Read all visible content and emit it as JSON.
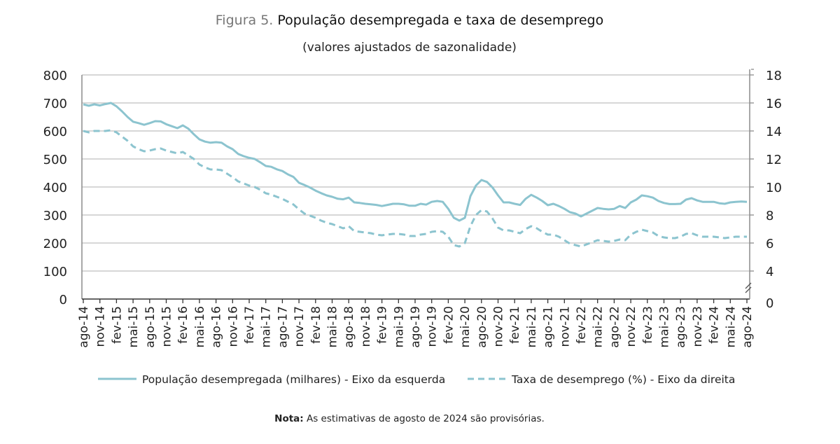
{
  "title": {
    "prefix": "Figura 5.",
    "text": "População desempregada e taxa de desemprego"
  },
  "subtitle": "(valores ajustados de sazonalidade)",
  "note": {
    "label": "Nota:",
    "text": "As estimativas de agosto de 2024 são provisórias."
  },
  "colors": {
    "series": "#8cc4cf",
    "grid": "#bfbfbf",
    "axis": "#8c8c8c"
  },
  "chart_data": {
    "type": "line",
    "frequency": "monthly",
    "x_tick_labels": [
      "ago-14",
      "nov-14",
      "fev-15",
      "mai-15",
      "ago-15",
      "nov-15",
      "fev-16",
      "mai-16",
      "ago-16",
      "nov-16",
      "fev-17",
      "mai-17",
      "ago-17",
      "nov-17",
      "fev-18",
      "mai-18",
      "ago-18",
      "nov-18",
      "fev-19",
      "mai-19",
      "ago-19",
      "nov-19",
      "fev-20",
      "mai-20",
      "ago-20",
      "nov-20",
      "fev-21",
      "mai-21",
      "ago-21",
      "nov-21",
      "fev-22",
      "mai-22",
      "ago-22",
      "nov-22",
      "fev-23",
      "mai-23",
      "ago-23",
      "nov-23",
      "fev-24",
      "mai-24",
      "ago-24"
    ],
    "y_left": {
      "range": [
        0,
        800
      ],
      "ticks": [
        "0",
        "100",
        "200",
        "300",
        "400",
        "500",
        "600",
        "700",
        "800"
      ]
    },
    "y_right": {
      "range": [
        0,
        18
      ],
      "ticks": [
        "0",
        "4",
        "6",
        "8",
        "10",
        "12",
        "14",
        "16",
        "18"
      ],
      "axis_break": true
    },
    "grid": true,
    "legend": "bottom",
    "series": [
      {
        "name": "População desempregada (milhares) - Eixo da esquerda",
        "axis": "left",
        "style": "solid",
        "values": [
          695,
          690,
          695,
          691,
          696,
          700,
          688,
          670,
          650,
          633,
          628,
          622,
          628,
          635,
          634,
          624,
          617,
          610,
          620,
          608,
          588,
          570,
          562,
          558,
          560,
          558,
          545,
          535,
          518,
          510,
          504,
          500,
          488,
          475,
          472,
          463,
          457,
          445,
          436,
          415,
          407,
          398,
          387,
          378,
          370,
          365,
          358,
          356,
          362,
          345,
          343,
          340,
          338,
          336,
          332,
          336,
          340,
          340,
          338,
          333,
          333,
          340,
          337,
          347,
          350,
          347,
          322,
          290,
          280,
          290,
          367,
          405,
          425,
          418,
          398,
          370,
          345,
          345,
          340,
          336,
          358,
          372,
          362,
          350,
          335,
          340,
          332,
          322,
          310,
          305,
          295,
          305,
          315,
          325,
          322,
          320,
          322,
          332,
          325,
          345,
          355,
          370,
          367,
          362,
          350,
          343,
          339,
          339,
          340,
          355,
          360,
          352,
          347,
          347,
          347,
          342,
          340,
          345,
          347,
          348,
          347
        ]
      },
      {
        "name": "Taxa de desemprego (%) - Eixo da direita",
        "axis": "right",
        "style": "dashed",
        "values": [
          14.0,
          13.9,
          14.0,
          14.0,
          14.0,
          14.05,
          13.9,
          13.6,
          13.3,
          12.9,
          12.7,
          12.55,
          12.6,
          12.7,
          12.75,
          12.6,
          12.5,
          12.4,
          12.5,
          12.25,
          12.0,
          11.6,
          11.4,
          11.25,
          11.25,
          11.2,
          10.95,
          10.7,
          10.4,
          10.25,
          10.1,
          10.0,
          9.8,
          9.55,
          9.45,
          9.3,
          9.15,
          8.95,
          8.75,
          8.4,
          8.1,
          7.95,
          7.8,
          7.6,
          7.45,
          7.35,
          7.2,
          7.05,
          7.2,
          6.85,
          6.8,
          6.75,
          6.7,
          6.6,
          6.55,
          6.6,
          6.65,
          6.65,
          6.6,
          6.5,
          6.5,
          6.6,
          6.65,
          6.8,
          6.85,
          6.8,
          6.45,
          5.85,
          5.75,
          6.0,
          7.2,
          8.0,
          8.35,
          8.25,
          7.75,
          7.1,
          6.9,
          6.9,
          6.8,
          6.7,
          7.0,
          7.2,
          7.05,
          6.8,
          6.6,
          6.6,
          6.45,
          6.2,
          5.95,
          5.85,
          5.75,
          5.9,
          6.05,
          6.2,
          6.15,
          6.1,
          6.15,
          6.25,
          6.2,
          6.6,
          6.8,
          6.95,
          6.85,
          6.75,
          6.5,
          6.4,
          6.35,
          6.35,
          6.45,
          6.65,
          6.7,
          6.55,
          6.45,
          6.45,
          6.45,
          6.4,
          6.35,
          6.4,
          6.45,
          6.45,
          6.45
        ]
      }
    ]
  }
}
